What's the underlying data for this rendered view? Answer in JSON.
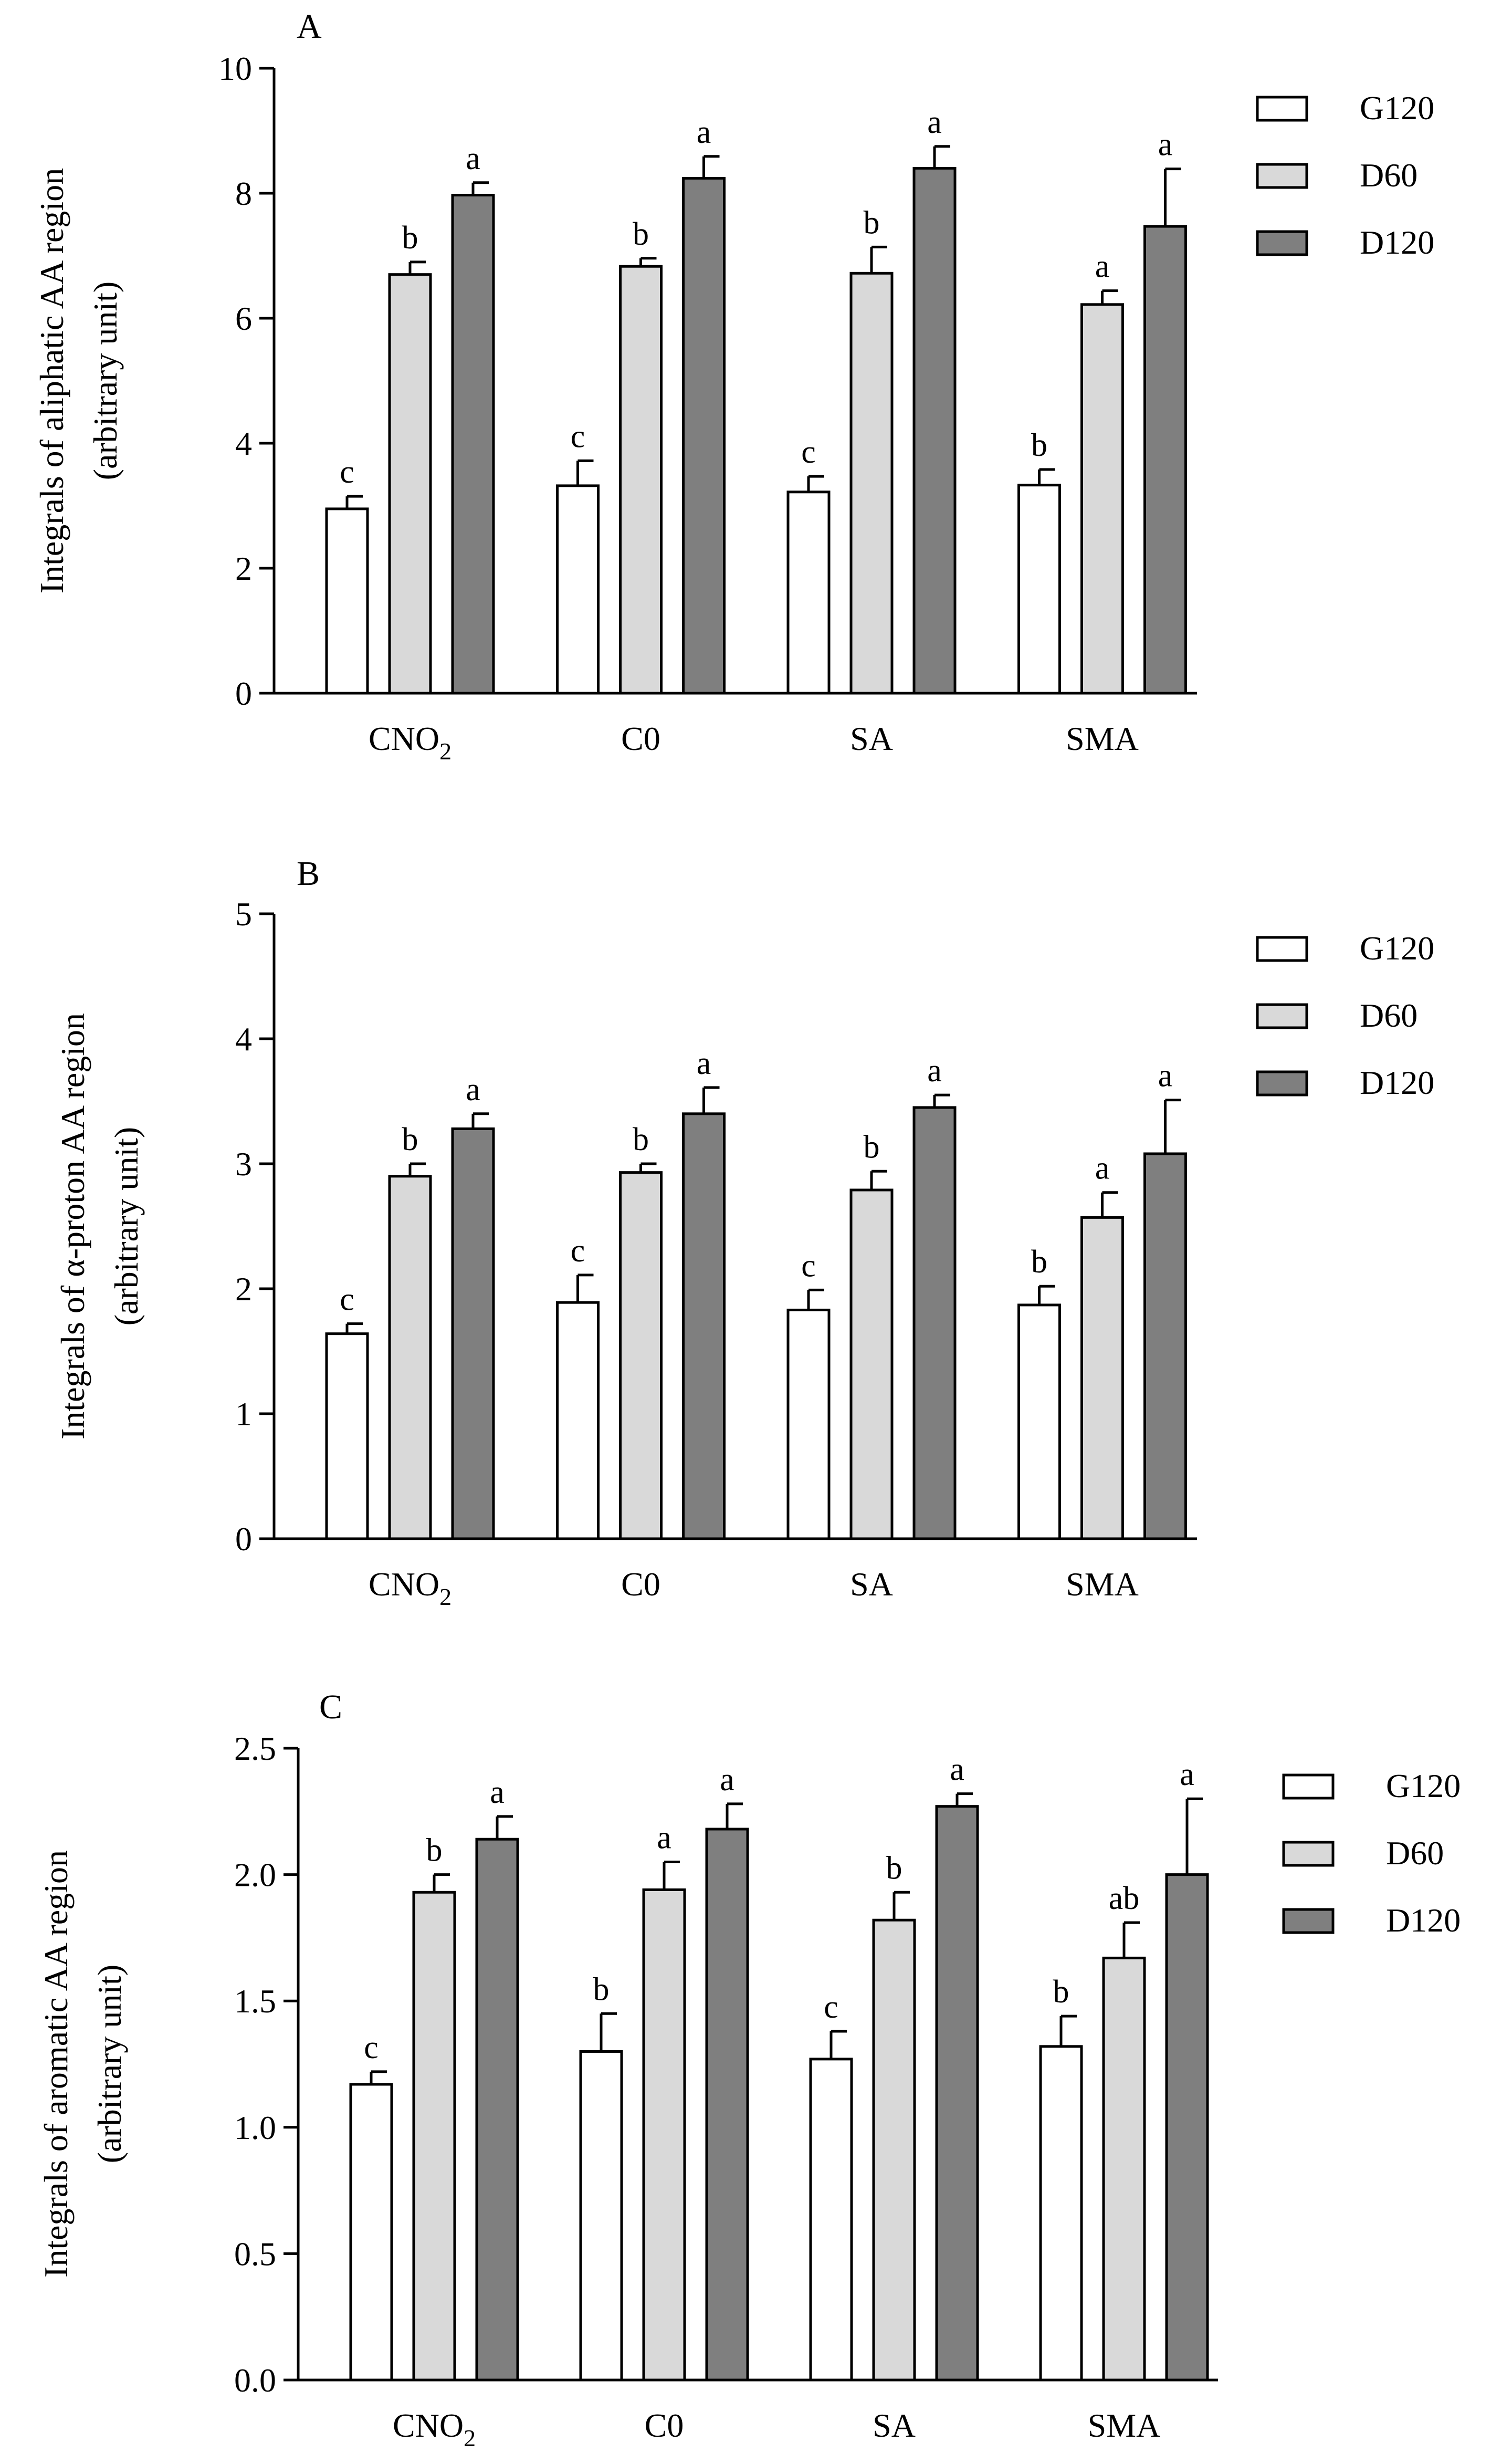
{
  "chart_data": [
    {
      "type": "bar",
      "panel_label": "A",
      "ylabel_line1": "Integrals of aliphatic AA region",
      "ylabel_line2": "(arbitrary unit)",
      "categories": [
        {
          "base": "CNO",
          "sub": "2"
        },
        {
          "base": "C0",
          "sub": ""
        },
        {
          "base": "SA",
          "sub": ""
        },
        {
          "base": "SMA",
          "sub": ""
        }
      ],
      "series": [
        {
          "name": "G120",
          "color": "#ffffff",
          "values": [
            2.95,
            3.32,
            3.22,
            3.33
          ],
          "errors": [
            0.2,
            0.4,
            0.25,
            0.25
          ],
          "letters": [
            "c",
            "c",
            "c",
            "b"
          ]
        },
        {
          "name": "D60",
          "color": "#d9d9d9",
          "values": [
            6.7,
            6.83,
            6.72,
            6.22
          ],
          "errors": [
            0.2,
            0.13,
            0.42,
            0.22
          ],
          "letters": [
            "b",
            "b",
            "b",
            "a"
          ]
        },
        {
          "name": "D120",
          "color": "#7f7f7f",
          "values": [
            7.97,
            8.24,
            8.4,
            7.47
          ],
          "errors": [
            0.2,
            0.35,
            0.35,
            0.92
          ],
          "letters": [
            "a",
            "a",
            "a",
            "a"
          ]
        }
      ],
      "ylim": [
        0,
        10
      ],
      "yticks": [
        0,
        2,
        4,
        6,
        8,
        10
      ],
      "ytick_labels": [
        "0",
        "2",
        "4",
        "6",
        "8",
        "10"
      ]
    },
    {
      "type": "bar",
      "panel_label": "B",
      "ylabel_line1": "Integrals of α-proton AA region",
      "ylabel_line2": "(arbitrary unit)",
      "categories": [
        {
          "base": "CNO",
          "sub": "2"
        },
        {
          "base": "C0",
          "sub": ""
        },
        {
          "base": "SA",
          "sub": ""
        },
        {
          "base": "SMA",
          "sub": ""
        }
      ],
      "series": [
        {
          "name": "G120",
          "color": "#ffffff",
          "values": [
            1.64,
            1.89,
            1.83,
            1.87
          ],
          "errors": [
            0.08,
            0.22,
            0.16,
            0.15
          ],
          "letters": [
            "c",
            "c",
            "c",
            "b"
          ]
        },
        {
          "name": "D60",
          "color": "#d9d9d9",
          "values": [
            2.9,
            2.93,
            2.79,
            2.57
          ],
          "errors": [
            0.1,
            0.07,
            0.15,
            0.2
          ],
          "letters": [
            "b",
            "b",
            "b",
            "a"
          ]
        },
        {
          "name": "D120",
          "color": "#7f7f7f",
          "values": [
            3.28,
            3.4,
            3.45,
            3.08
          ],
          "errors": [
            0.12,
            0.21,
            0.1,
            0.43
          ],
          "letters": [
            "a",
            "a",
            "a",
            "a"
          ]
        }
      ],
      "ylim": [
        0,
        5
      ],
      "yticks": [
        0,
        1,
        2,
        3,
        4,
        5
      ],
      "ytick_labels": [
        "0",
        "1",
        "2",
        "3",
        "4",
        "5"
      ]
    },
    {
      "type": "bar",
      "panel_label": "C",
      "ylabel_line1": "Integrals of aromatic AA region",
      "ylabel_line2": "(arbitrary unit)",
      "categories": [
        {
          "base": "CNO",
          "sub": "2"
        },
        {
          "base": "C0",
          "sub": ""
        },
        {
          "base": "SA",
          "sub": ""
        },
        {
          "base": "SMA",
          "sub": ""
        }
      ],
      "series": [
        {
          "name": "G120",
          "color": "#ffffff",
          "values": [
            1.17,
            1.3,
            1.27,
            1.32
          ],
          "errors": [
            0.05,
            0.15,
            0.11,
            0.12
          ],
          "letters": [
            "c",
            "b",
            "c",
            "b"
          ]
        },
        {
          "name": "D60",
          "color": "#d9d9d9",
          "values": [
            1.93,
            1.94,
            1.82,
            1.67
          ],
          "errors": [
            0.07,
            0.11,
            0.11,
            0.14
          ],
          "letters": [
            "b",
            "a",
            "b",
            "ab"
          ]
        },
        {
          "name": "D120",
          "color": "#7f7f7f",
          "values": [
            2.14,
            2.18,
            2.27,
            2.0
          ],
          "errors": [
            0.09,
            0.1,
            0.05,
            0.3
          ],
          "letters": [
            "a",
            "a",
            "a",
            "a"
          ]
        }
      ],
      "ylim": [
        0,
        2.5
      ],
      "yticks": [
        0,
        0.5,
        1,
        1.5,
        2,
        2.5
      ],
      "ytick_labels": [
        "0.0",
        "0.5",
        "1.0",
        "1.5",
        "2.0",
        "2.5"
      ]
    }
  ]
}
